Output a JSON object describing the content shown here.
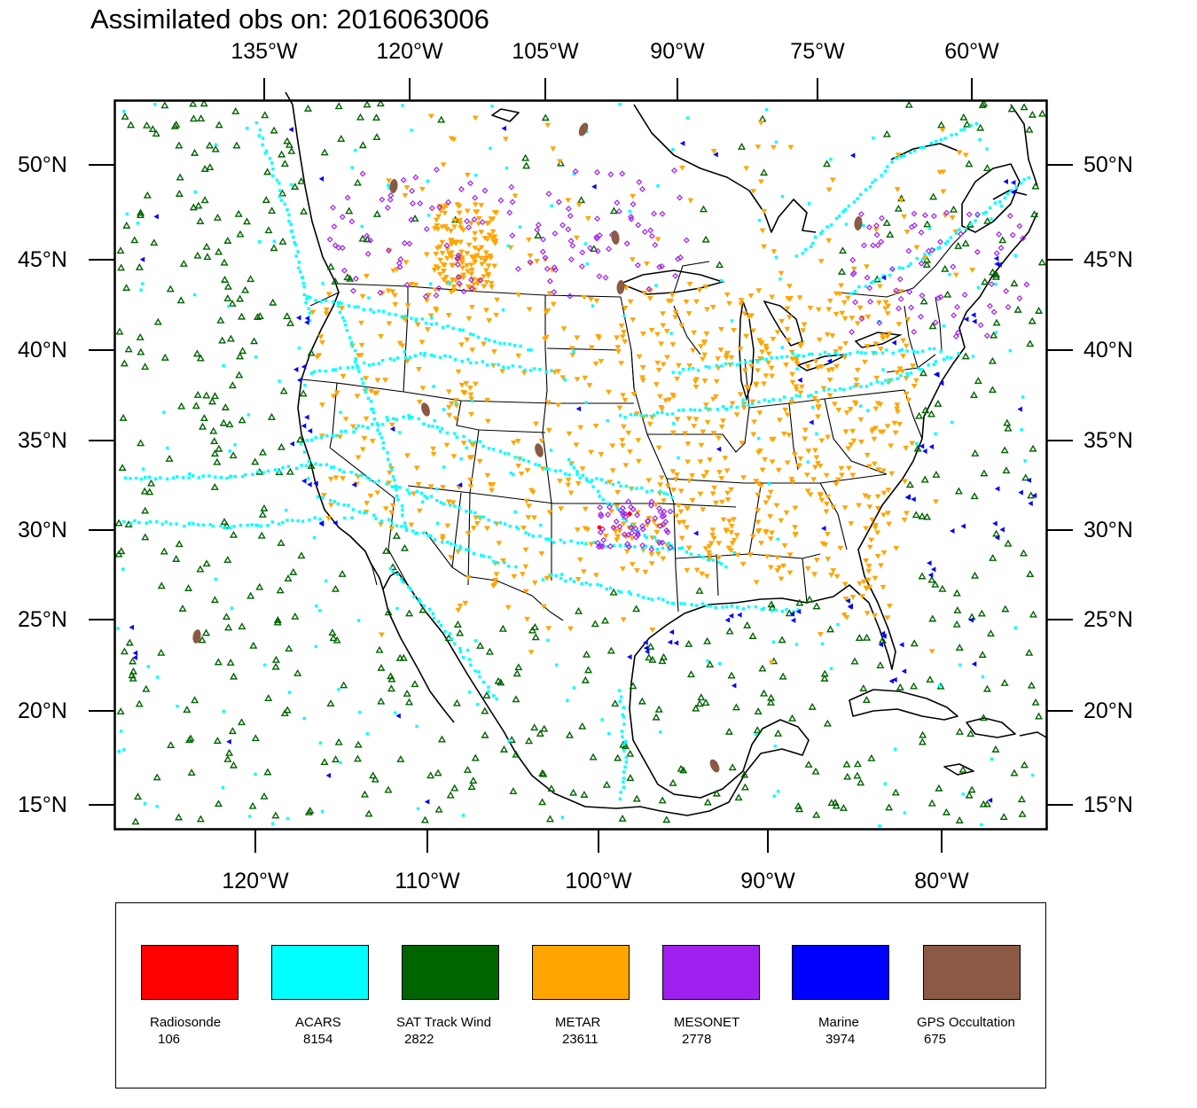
{
  "title": "Assimilated obs on: 2016063006",
  "axes": {
    "top_labels": [
      "135°W",
      "120°W",
      "105°W",
      "90°W",
      "75°W",
      "60°W"
    ],
    "bottom_labels": [
      "120°W",
      "110°W",
      "100°W",
      "90°W",
      "80°W"
    ],
    "left_labels": [
      "50°N",
      "45°N",
      "40°N",
      "35°N",
      "30°N",
      "25°N",
      "20°N",
      "15°N"
    ],
    "right_labels": [
      "50°N",
      "45°N",
      "40°N",
      "35°N",
      "30°N",
      "25°N",
      "20°N",
      "15°N"
    ]
  },
  "legend": [
    {
      "name": "Radiosonde",
      "count": "106",
      "color": "#ff0000"
    },
    {
      "name": "ACARS",
      "count": "8154",
      "color": "#00ffff"
    },
    {
      "name": "SAT Track Wind",
      "count": "2822",
      "color": "#006400"
    },
    {
      "name": "METAR",
      "count": "23611",
      "color": "#ffa500"
    },
    {
      "name": "MESONET",
      "count": "2778",
      "color": "#a020f0"
    },
    {
      "name": "Marine",
      "count": "3974",
      "color": "#0000ff"
    },
    {
      "name": "GPS Occultation",
      "count": "675",
      "color": "#8b5a44"
    }
  ]
}
